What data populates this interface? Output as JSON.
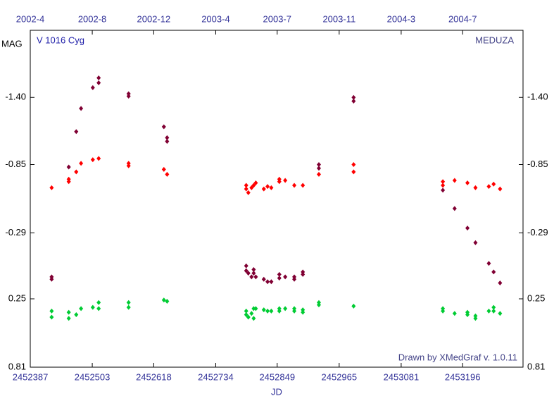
{
  "chart_data": {
    "type": "scatter",
    "title": "V 1016 Cyg",
    "annotation_right": "MEDUZA",
    "credit": "Drawn by XMedGraf v. 1.0.11",
    "x_label": "JD",
    "y_label": "MAG",
    "xlim": [
      2452387,
      2453309
    ],
    "ylim": [
      0.81,
      -1.95
    ],
    "xticks": [
      2452387,
      2452503,
      2452618,
      2452734,
      2452849,
      2452965,
      2453081,
      2453196
    ],
    "x2ticks": [
      {
        "value": 2452387,
        "label": "2002-4"
      },
      {
        "value": 2452503,
        "label": "2002-8"
      },
      {
        "value": 2452618,
        "label": "2002-12"
      },
      {
        "value": 2452734,
        "label": "2003-4"
      },
      {
        "value": 2452849,
        "label": "2003-7"
      },
      {
        "value": 2452965,
        "label": "2003-11"
      },
      {
        "value": 2453081,
        "label": "2004-3"
      },
      {
        "value": 2453196,
        "label": "2004-7"
      }
    ],
    "yticks": [
      {
        "value": -1.4,
        "label": "-1.40"
      },
      -0.85,
      -0.29,
      0.25,
      0.81
    ],
    "grid": false,
    "series": [
      {
        "color": "#800033",
        "x": [
          2452427,
          2452427,
          2452459,
          2452473,
          2452482,
          2452504,
          2452515,
          2452515,
          2452571,
          2452571,
          2452637,
          2452643,
          2452643,
          2452791,
          2452791,
          2452795,
          2452801,
          2452805,
          2452805,
          2452809,
          2452824,
          2452831,
          2452838,
          2452853,
          2452853,
          2452864,
          2452881,
          2452881,
          2452897,
          2452897,
          2452927,
          2452927,
          2452992,
          2452992,
          2453159,
          2453181,
          2453205,
          2453220,
          2453245,
          2453254,
          2453266
        ],
        "values": [
          0.07,
          0.09,
          -0.83,
          -1.12,
          -1.31,
          -1.48,
          -1.56,
          -1.52,
          -1.43,
          -1.41,
          -1.16,
          -1.07,
          -1.04,
          -0.02,
          0.02,
          0.04,
          0.07,
          0.01,
          0.04,
          0.07,
          0.09,
          0.11,
          0.11,
          0.05,
          0.08,
          0.07,
          0.07,
          0.09,
          0.03,
          0.05,
          -0.85,
          -0.82,
          -1.4,
          -1.37,
          -0.64,
          -0.49,
          -0.33,
          -0.21,
          -0.04,
          0.03,
          0.12
        ]
      },
      {
        "color": "#ff0000",
        "x": [
          2452427,
          2452459,
          2452459,
          2452473,
          2452482,
          2452504,
          2452515,
          2452571,
          2452571,
          2452637,
          2452643,
          2452791,
          2452791,
          2452795,
          2452801,
          2452805,
          2452809,
          2452824,
          2452831,
          2452838,
          2452853,
          2452853,
          2452864,
          2452881,
          2452897,
          2452927,
          2452992,
          2452992,
          2453159,
          2453159,
          2453181,
          2453205,
          2453220,
          2453245,
          2453254,
          2453266
        ],
        "values": [
          -0.66,
          -0.73,
          -0.71,
          -0.79,
          -0.86,
          -0.89,
          -0.9,
          -0.86,
          -0.84,
          -0.81,
          -0.77,
          -0.68,
          -0.65,
          -0.62,
          -0.66,
          -0.68,
          -0.7,
          -0.65,
          -0.67,
          -0.66,
          -0.73,
          -0.71,
          -0.72,
          -0.68,
          -0.68,
          -0.77,
          -0.85,
          -0.79,
          -0.71,
          -0.68,
          -0.72,
          -0.7,
          -0.66,
          -0.67,
          -0.69,
          -0.65
        ]
      },
      {
        "color": "#00cc33",
        "x": [
          2452427,
          2452427,
          2452459,
          2452459,
          2452473,
          2452482,
          2452504,
          2452515,
          2452515,
          2452571,
          2452571,
          2452637,
          2452643,
          2452791,
          2452791,
          2452795,
          2452801,
          2452805,
          2452805,
          2452809,
          2452824,
          2452831,
          2452838,
          2452853,
          2452853,
          2452864,
          2452881,
          2452881,
          2452897,
          2452897,
          2452927,
          2452927,
          2452992,
          2453159,
          2453159,
          2453181,
          2453205,
          2453205,
          2453220,
          2453220,
          2453245,
          2453254,
          2453254,
          2453266
        ],
        "values": [
          0.35,
          0.4,
          0.36,
          0.41,
          0.38,
          0.33,
          0.32,
          0.28,
          0.33,
          0.28,
          0.32,
          0.26,
          0.27,
          0.35,
          0.38,
          0.4,
          0.37,
          0.33,
          0.41,
          0.33,
          0.34,
          0.35,
          0.35,
          0.33,
          0.35,
          0.33,
          0.33,
          0.35,
          0.34,
          0.36,
          0.28,
          0.3,
          0.31,
          0.33,
          0.35,
          0.37,
          0.36,
          0.38,
          0.39,
          0.41,
          0.35,
          0.32,
          0.35,
          0.37
        ]
      }
    ]
  }
}
